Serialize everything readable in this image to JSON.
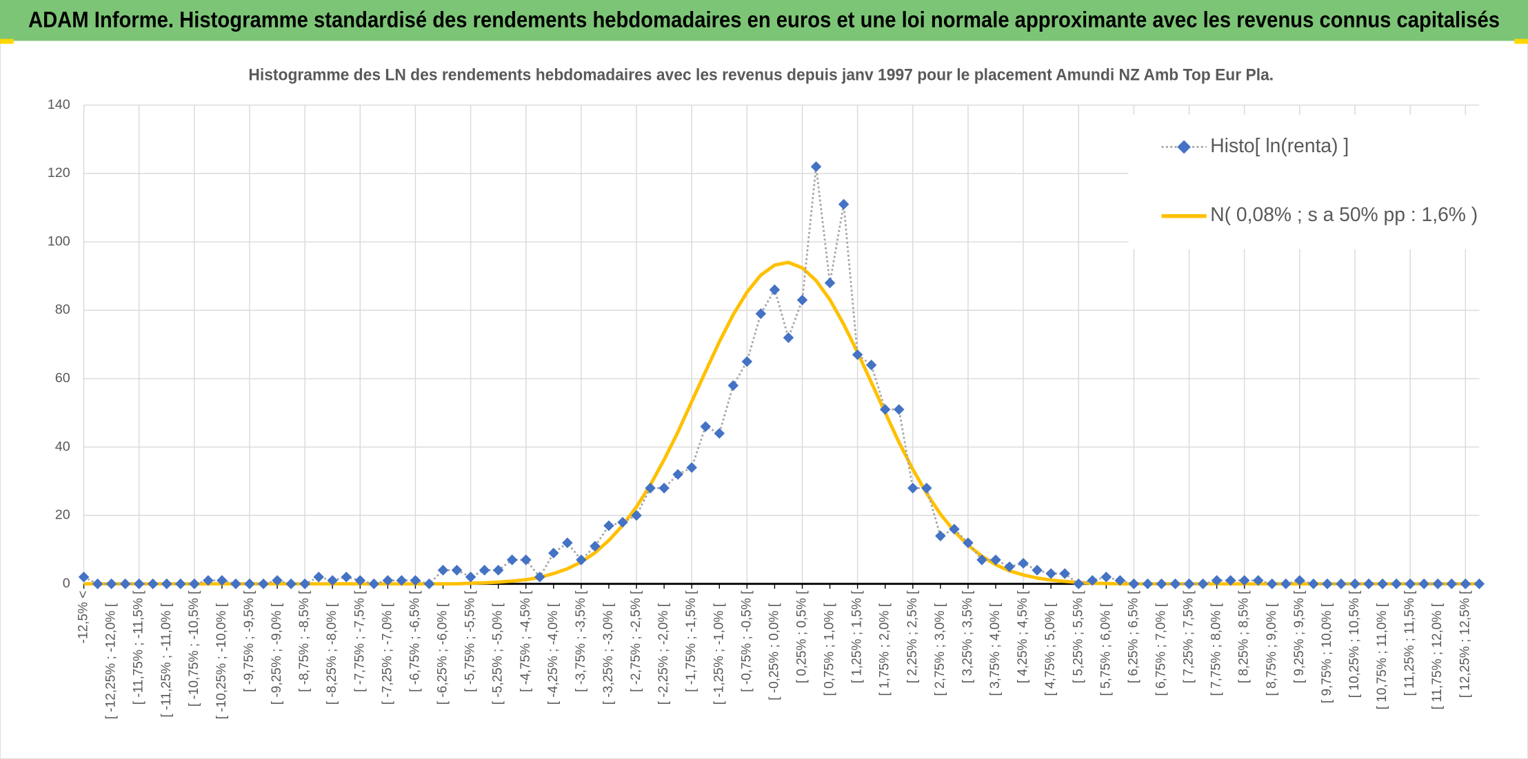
{
  "header": {
    "title": "ADAM Informe. Histogramme standardisé des rendements hebdomadaires en euros et une loi normale approximante avec les revenus connus capitalisés"
  },
  "chart_data": {
    "type": "line",
    "title": "Histogramme des LN des rendements hebdomadaires avec les revenus depuis janv 1997 pour le placement Amundi NZ Amb Top Eur Pla.",
    "categories": [
      "-12,5% <",
      null,
      "[ -12,25% ; -12,0% [",
      null,
      "[ -11,75% ; -11,5% [",
      null,
      "[ -11,25% ; -11,0% [",
      null,
      "[ -10,75% ; -10,5% [",
      null,
      "[ -10,25% ; -10,0% [",
      null,
      "[ -9,75% ; -9,5% [",
      null,
      "[ -9,25% ; -9,0% [",
      null,
      "[ -8,75% ; -8,5% [",
      null,
      "[ -8,25% ; -8,0% [",
      null,
      "[ -7,75% ; -7,5% [",
      null,
      "[ -7,25% ; -7,0% [",
      null,
      "[ -6,75% ; -6,5% [",
      null,
      "[ -6,25% ; -6,0% [",
      null,
      "[ -5,75% ; -5,5% [",
      null,
      "[ -5,25% ; -5,0% [",
      null,
      "[ -4,75% ; -4,5% [",
      null,
      "[ -4,25% ; -4,0% [",
      null,
      "[ -3,75% ; -3,5% [",
      null,
      "[ -3,25% ; -3,0% [",
      null,
      "[ -2,75% ; -2,5% [",
      null,
      "[ -2,25% ; -2,0% [",
      null,
      "[ -1,75% ; -1,5% [",
      null,
      "[ -1,25% ; -1,0% [",
      null,
      "[ -0,75% ; -0,5% [",
      null,
      "[ -0,25% ; 0,0% [",
      null,
      "[ 0,25% ; 0,5% [",
      null,
      "[ 0,75% ; 1,0% [",
      null,
      "[ 1,25% ; 1,5% [",
      null,
      "[ 1,75% ; 2,0% [",
      null,
      "[ 2,25% ; 2,5% [",
      null,
      "[ 2,75% ; 3,0% [",
      null,
      "[ 3,25% ; 3,5% [",
      null,
      "[ 3,75% ; 4,0% [",
      null,
      "[ 4,25% ; 4,5% [",
      null,
      "[ 4,75% ; 5,0% [",
      null,
      "[ 5,25% ; 5,5% [",
      null,
      "[ 5,75% ; 6,0% [",
      null,
      "[ 6,25% ; 6,5% [",
      null,
      "[ 6,75% ; 7,0% [",
      null,
      "[ 7,25% ; 7,5% [",
      null,
      "[ 7,75% ; 8,0% [",
      null,
      "[ 8,25% ; 8,5% [",
      null,
      "[ 8,75% ; 9,0% [",
      null,
      "[ 9,25% ; 9,5% [",
      null,
      "[ 9,75% ; 10,0% [",
      null,
      "[ 10,25% ; 10,5% [",
      null,
      "[ 10,75% ; 11,0% [",
      null,
      "[ 11,25% ; 11,5% [",
      null,
      "[ 11,75% ; 12,0% [",
      null,
      "[ 12,25% ; 12,5% [",
      null
    ],
    "series": [
      {
        "name": "Histo[ ln(renta) ]",
        "color": "#4472c4",
        "line_color": "#a5a5a5",
        "marker": "diamond",
        "values": [
          2,
          0,
          0,
          0,
          0,
          0,
          0,
          0,
          0,
          1,
          1,
          0,
          0,
          0,
          1,
          0,
          0,
          2,
          1,
          2,
          1,
          0,
          1,
          1,
          1,
          0,
          4,
          4,
          2,
          4,
          4,
          7,
          7,
          2,
          9,
          12,
          7,
          11,
          17,
          18,
          20,
          28,
          28,
          32,
          34,
          46,
          44,
          58,
          65,
          79,
          86,
          72,
          83,
          122,
          88,
          111,
          67,
          64,
          51,
          51,
          28,
          28,
          14,
          16,
          12,
          7,
          7,
          5,
          6,
          4,
          3,
          3,
          0,
          1,
          2,
          1,
          0,
          0,
          0,
          0,
          0,
          0,
          1,
          1,
          1,
          1,
          0,
          0,
          1,
          0,
          0,
          0,
          0,
          0,
          0,
          0,
          0,
          0,
          0,
          0,
          0,
          0
        ]
      },
      {
        "name": "N( 0,08% ; s a 50% pp : 1,6% )",
        "color": "#ffc000",
        "values": [
          0,
          0,
          0,
          0,
          0,
          0,
          0,
          0,
          0,
          0,
          0,
          0,
          0,
          0,
          0,
          0,
          0,
          0,
          0,
          0,
          0,
          0,
          0,
          0,
          0,
          0,
          0,
          0,
          0.2,
          0.3,
          0.5,
          0.8,
          1.2,
          1.9,
          3.0,
          4.4,
          6.4,
          9.1,
          12.7,
          17.1,
          22.5,
          28.9,
          36.3,
          44.4,
          53.3,
          62.1,
          70.8,
          78.7,
          85.3,
          90.3,
          93.2,
          94.0,
          92.4,
          88.7,
          83.1,
          75.9,
          67.7,
          58.9,
          50.1,
          41.4,
          33.5,
          26.5,
          20.4,
          15.4,
          11.3,
          8.1,
          5.6,
          3.8,
          2.6,
          1.7,
          1.1,
          0.7,
          0.4,
          0.2,
          0.1,
          0,
          0,
          0,
          0,
          0,
          0,
          0,
          0,
          0,
          0,
          0,
          0,
          0,
          0,
          0,
          0,
          0,
          0,
          0,
          0,
          0,
          0,
          0,
          0,
          0,
          0,
          0
        ]
      }
    ],
    "ylim": [
      0,
      140
    ],
    "yticks": [
      0,
      20,
      40,
      60,
      80,
      100,
      120,
      140
    ],
    "grid": true,
    "legend": "upper right"
  }
}
